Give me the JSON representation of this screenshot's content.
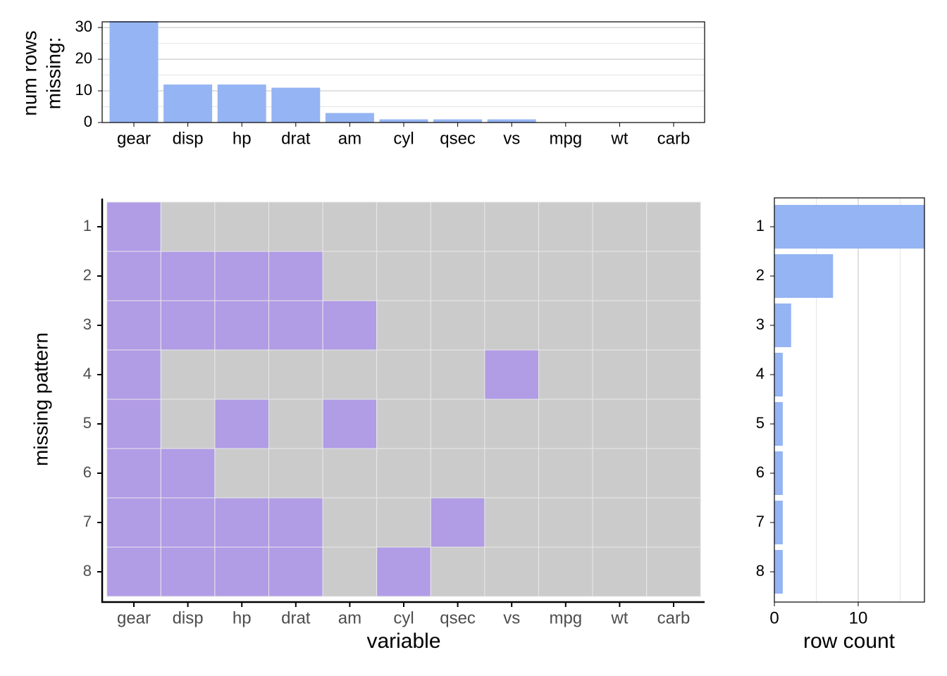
{
  "chart_data": [
    {
      "type": "bar",
      "ylabel": [
        "num rows",
        "missing:"
      ],
      "categories": [
        "gear",
        "disp",
        "hp",
        "drat",
        "am",
        "cyl",
        "qsec",
        "vs",
        "mpg",
        "wt",
        "carb"
      ],
      "values": [
        32,
        12,
        12,
        11,
        3,
        1,
        1,
        1,
        0,
        0,
        0
      ],
      "color": "#94b4f3",
      "ylim": [
        0,
        31.8
      ],
      "yticks": [
        0,
        10,
        20,
        30
      ],
      "minor_yticks": [
        5,
        15,
        25
      ],
      "grid": true
    },
    {
      "type": "heatmap",
      "xlabel": "variable",
      "ylabel": "missing pattern",
      "columns": [
        "gear",
        "disp",
        "hp",
        "drat",
        "am",
        "cyl",
        "qsec",
        "vs",
        "mpg",
        "wt",
        "carb"
      ],
      "rows": [
        "1",
        "2",
        "3",
        "4",
        "5",
        "6",
        "7",
        "8"
      ],
      "values": [
        [
          1,
          0,
          0,
          0,
          0,
          0,
          0,
          0,
          0,
          0,
          0
        ],
        [
          1,
          1,
          1,
          1,
          0,
          0,
          0,
          0,
          0,
          0,
          0
        ],
        [
          1,
          1,
          1,
          1,
          1,
          0,
          0,
          0,
          0,
          0,
          0
        ],
        [
          1,
          0,
          0,
          0,
          0,
          0,
          0,
          1,
          0,
          0,
          0
        ],
        [
          1,
          0,
          1,
          0,
          1,
          0,
          0,
          0,
          0,
          0,
          0
        ],
        [
          1,
          1,
          0,
          0,
          0,
          0,
          0,
          0,
          0,
          0,
          0
        ],
        [
          1,
          1,
          1,
          1,
          0,
          0,
          1,
          0,
          0,
          0,
          0
        ],
        [
          1,
          1,
          1,
          1,
          0,
          1,
          0,
          0,
          0,
          0,
          0
        ]
      ],
      "missing_color": "#b19ce6",
      "present_color": "#cbcbcb"
    },
    {
      "type": "barh",
      "xlabel": "row count",
      "categories": [
        "1",
        "2",
        "3",
        "4",
        "5",
        "6",
        "7",
        "8"
      ],
      "values": [
        18,
        7,
        2,
        1,
        1,
        1,
        1,
        1
      ],
      "color": "#94b4f3",
      "xlim": [
        0,
        17.9
      ],
      "xticks": [
        0,
        10
      ],
      "minor_xticks": [
        5,
        15
      ],
      "grid": true
    }
  ]
}
